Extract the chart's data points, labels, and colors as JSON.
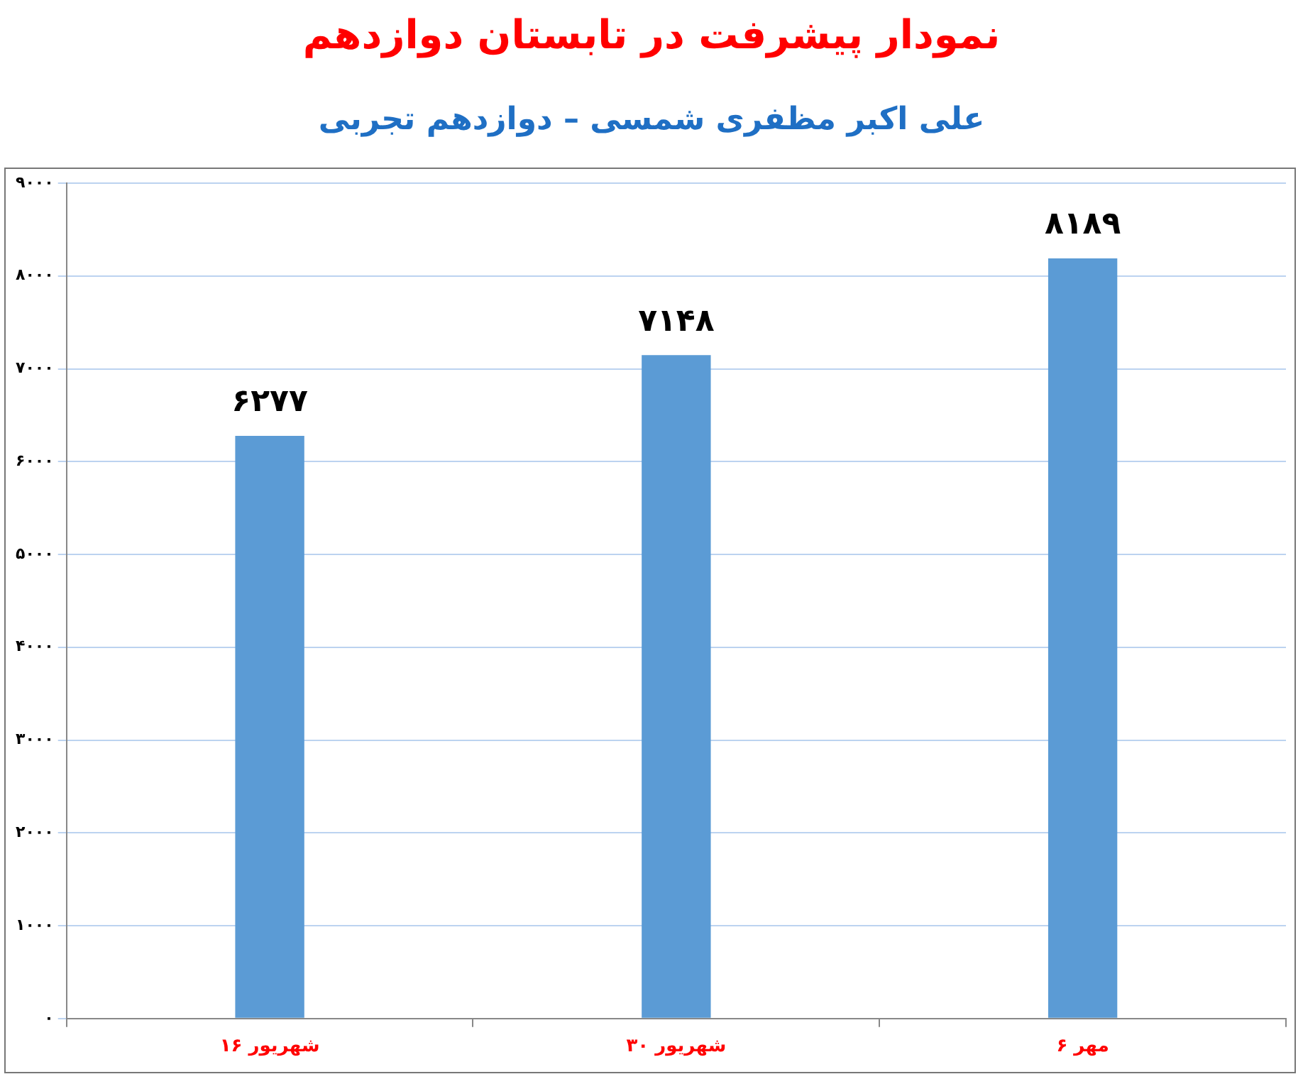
{
  "chart_data": {
    "type": "bar",
    "title": "نمودار پیشرفت در تابستان دوازدهم",
    "subtitle": "علی اکبر مظفری شمسی – دوازدهم تجربی",
    "categories": [
      "۱۶ شهریور",
      "۳۰ شهریور",
      "۶ مهر"
    ],
    "values": [
      6277,
      7148,
      8189
    ],
    "color": "#5b9bd5",
    "value_labels": [
      "۶۲۷۷",
      "۷۱۴۸",
      "۸۱۸۹"
    ],
    "ylim": [
      0,
      9000
    ],
    "yticks": [
      {
        "value": 0,
        "label": "۰"
      },
      {
        "value": 1000,
        "label": "۱۰۰۰"
      },
      {
        "value": 2000,
        "label": "۲۰۰۰"
      },
      {
        "value": 3000,
        "label": "۳۰۰۰"
      },
      {
        "value": 4000,
        "label": "۴۰۰۰"
      },
      {
        "value": 5000,
        "label": "۵۰۰۰"
      },
      {
        "value": 6000,
        "label": "۶۰۰۰"
      },
      {
        "value": 7000,
        "label": "۷۰۰۰"
      },
      {
        "value": 8000,
        "label": "۸۰۰۰"
      },
      {
        "value": 9000,
        "label": "۹۰۰۰"
      }
    ],
    "grid": "y"
  }
}
